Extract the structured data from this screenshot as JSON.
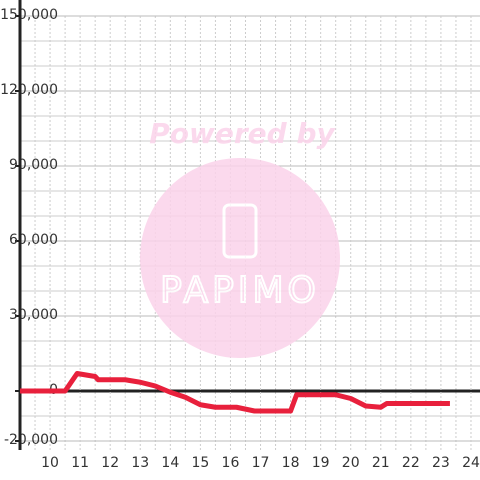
{
  "chart_data": {
    "type": "line",
    "x": [
      9,
      10.5,
      10.9,
      11.5,
      11.6,
      12.5,
      13,
      13.5,
      14,
      14.5,
      15,
      15.5,
      16.2,
      16.8,
      17.5,
      18,
      18.2,
      19.5,
      20,
      20.5,
      21,
      21.2,
      23.3
    ],
    "series": [
      {
        "color": "#e8203c",
        "values": [
          0,
          0,
          7000,
          5800,
          4500,
          4500,
          3500,
          2000,
          -500,
          -2500,
          -5500,
          -6500,
          -6500,
          -8000,
          -8000,
          -8000,
          -1500,
          -1500,
          -3000,
          -6000,
          -6500,
          -5000,
          -5000
        ]
      }
    ],
    "xlim": [
      9,
      24.3
    ],
    "xticks": [
      10,
      11,
      12,
      13,
      14,
      15,
      16,
      17,
      18,
      19,
      20,
      21,
      22,
      23,
      24
    ],
    "minor_xticks": [
      9.5,
      10.5,
      11.5,
      12.5,
      13.5,
      14.5,
      15.5,
      16.5,
      17.5,
      18.5,
      19.5,
      20.5,
      21.5,
      22.5,
      23.5
    ],
    "ylim": [
      -23600,
      150000
    ],
    "yticks": [
      {
        "value": -20000,
        "label": "-20,000"
      },
      0,
      {
        "value": 30000,
        "label": "30,000"
      },
      {
        "value": 60000,
        "label": "60,000"
      },
      {
        "value": 90000,
        "label": "90,000"
      },
      {
        "value": 120000,
        "label": "120,000"
      },
      {
        "value": 150000,
        "label": "150,000"
      }
    ],
    "minor_yticks": [
      -10000,
      10000,
      20000,
      40000,
      50000,
      70000,
      80000,
      100000,
      110000,
      130000,
      140000
    ],
    "grid": true
  },
  "watermark": {
    "caption": "Powered by",
    "logo": "PAPIMO"
  }
}
